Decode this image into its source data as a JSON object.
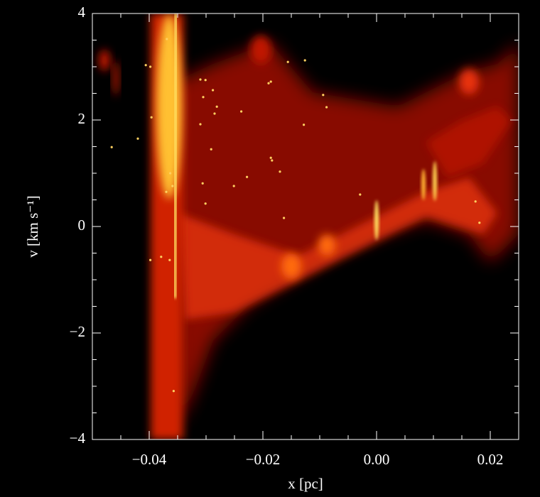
{
  "chart_data": {
    "type": "scatter",
    "xlabel": "x [pc]",
    "ylabel": "v [km s⁻¹]",
    "xlim": [
      -0.05,
      0.025
    ],
    "ylim": [
      -4,
      4
    ],
    "xticks": [
      {
        "value": -0.04,
        "label": "−0.04"
      },
      {
        "value": -0.02,
        "label": "−0.02"
      },
      {
        "value": 0,
        "label": "0.00"
      },
      {
        "value": 0.02,
        "label": "0.02"
      }
    ],
    "yticks": [
      {
        "value": -4,
        "label": "−4"
      },
      {
        "value": -2,
        "label": "−2"
      },
      0,
      2,
      4
    ],
    "xminorticks": [
      -0.045,
      -0.035,
      -0.03,
      -0.025,
      -0.015,
      -0.01,
      -0.005,
      0.005,
      0.01,
      0.015
    ],
    "yminorticks": [
      -3.5,
      -3,
      -2.5,
      -1.5,
      -1,
      -0.5,
      0.5,
      1,
      1.5,
      2.5,
      3,
      3.5
    ],
    "color": "#ffd060",
    "x": [
      -0.0466,
      -0.042,
      -0.0406,
      -0.0398,
      -0.0396,
      -0.0398,
      -0.0379,
      -0.0364,
      -0.0369,
      -0.0363,
      -0.037,
      -0.0359,
      -0.0357,
      -0.031,
      -0.0301,
      -0.0305,
      -0.0288,
      -0.0281,
      -0.0285,
      -0.031,
      -0.0291,
      -0.0306,
      -0.0301,
      -0.0251,
      -0.0238,
      -0.0228,
      -0.019,
      -0.0186,
      -0.0186,
      -0.0184,
      -0.017,
      -0.0163,
      -0.0156,
      -0.0126,
      -0.0128,
      -0.0094,
      -0.0088,
      -0.0029,
      0.0174,
      0.0181
    ],
    "values": [
      1.49,
      1.65,
      3.03,
      3.0,
      2.05,
      -0.63,
      -0.57,
      -0.63,
      3.52,
      1.0,
      0.65,
      0.76,
      -3.09,
      2.76,
      2.75,
      2.43,
      2.56,
      2.25,
      2.12,
      1.92,
      1.45,
      0.81,
      0.43,
      0.76,
      2.16,
      0.93,
      2.69,
      2.72,
      1.29,
      1.24,
      1.03,
      0.16,
      3.09,
      3.12,
      1.91,
      2.47,
      2.24,
      0.6,
      0.47,
      0.07
    ]
  }
}
